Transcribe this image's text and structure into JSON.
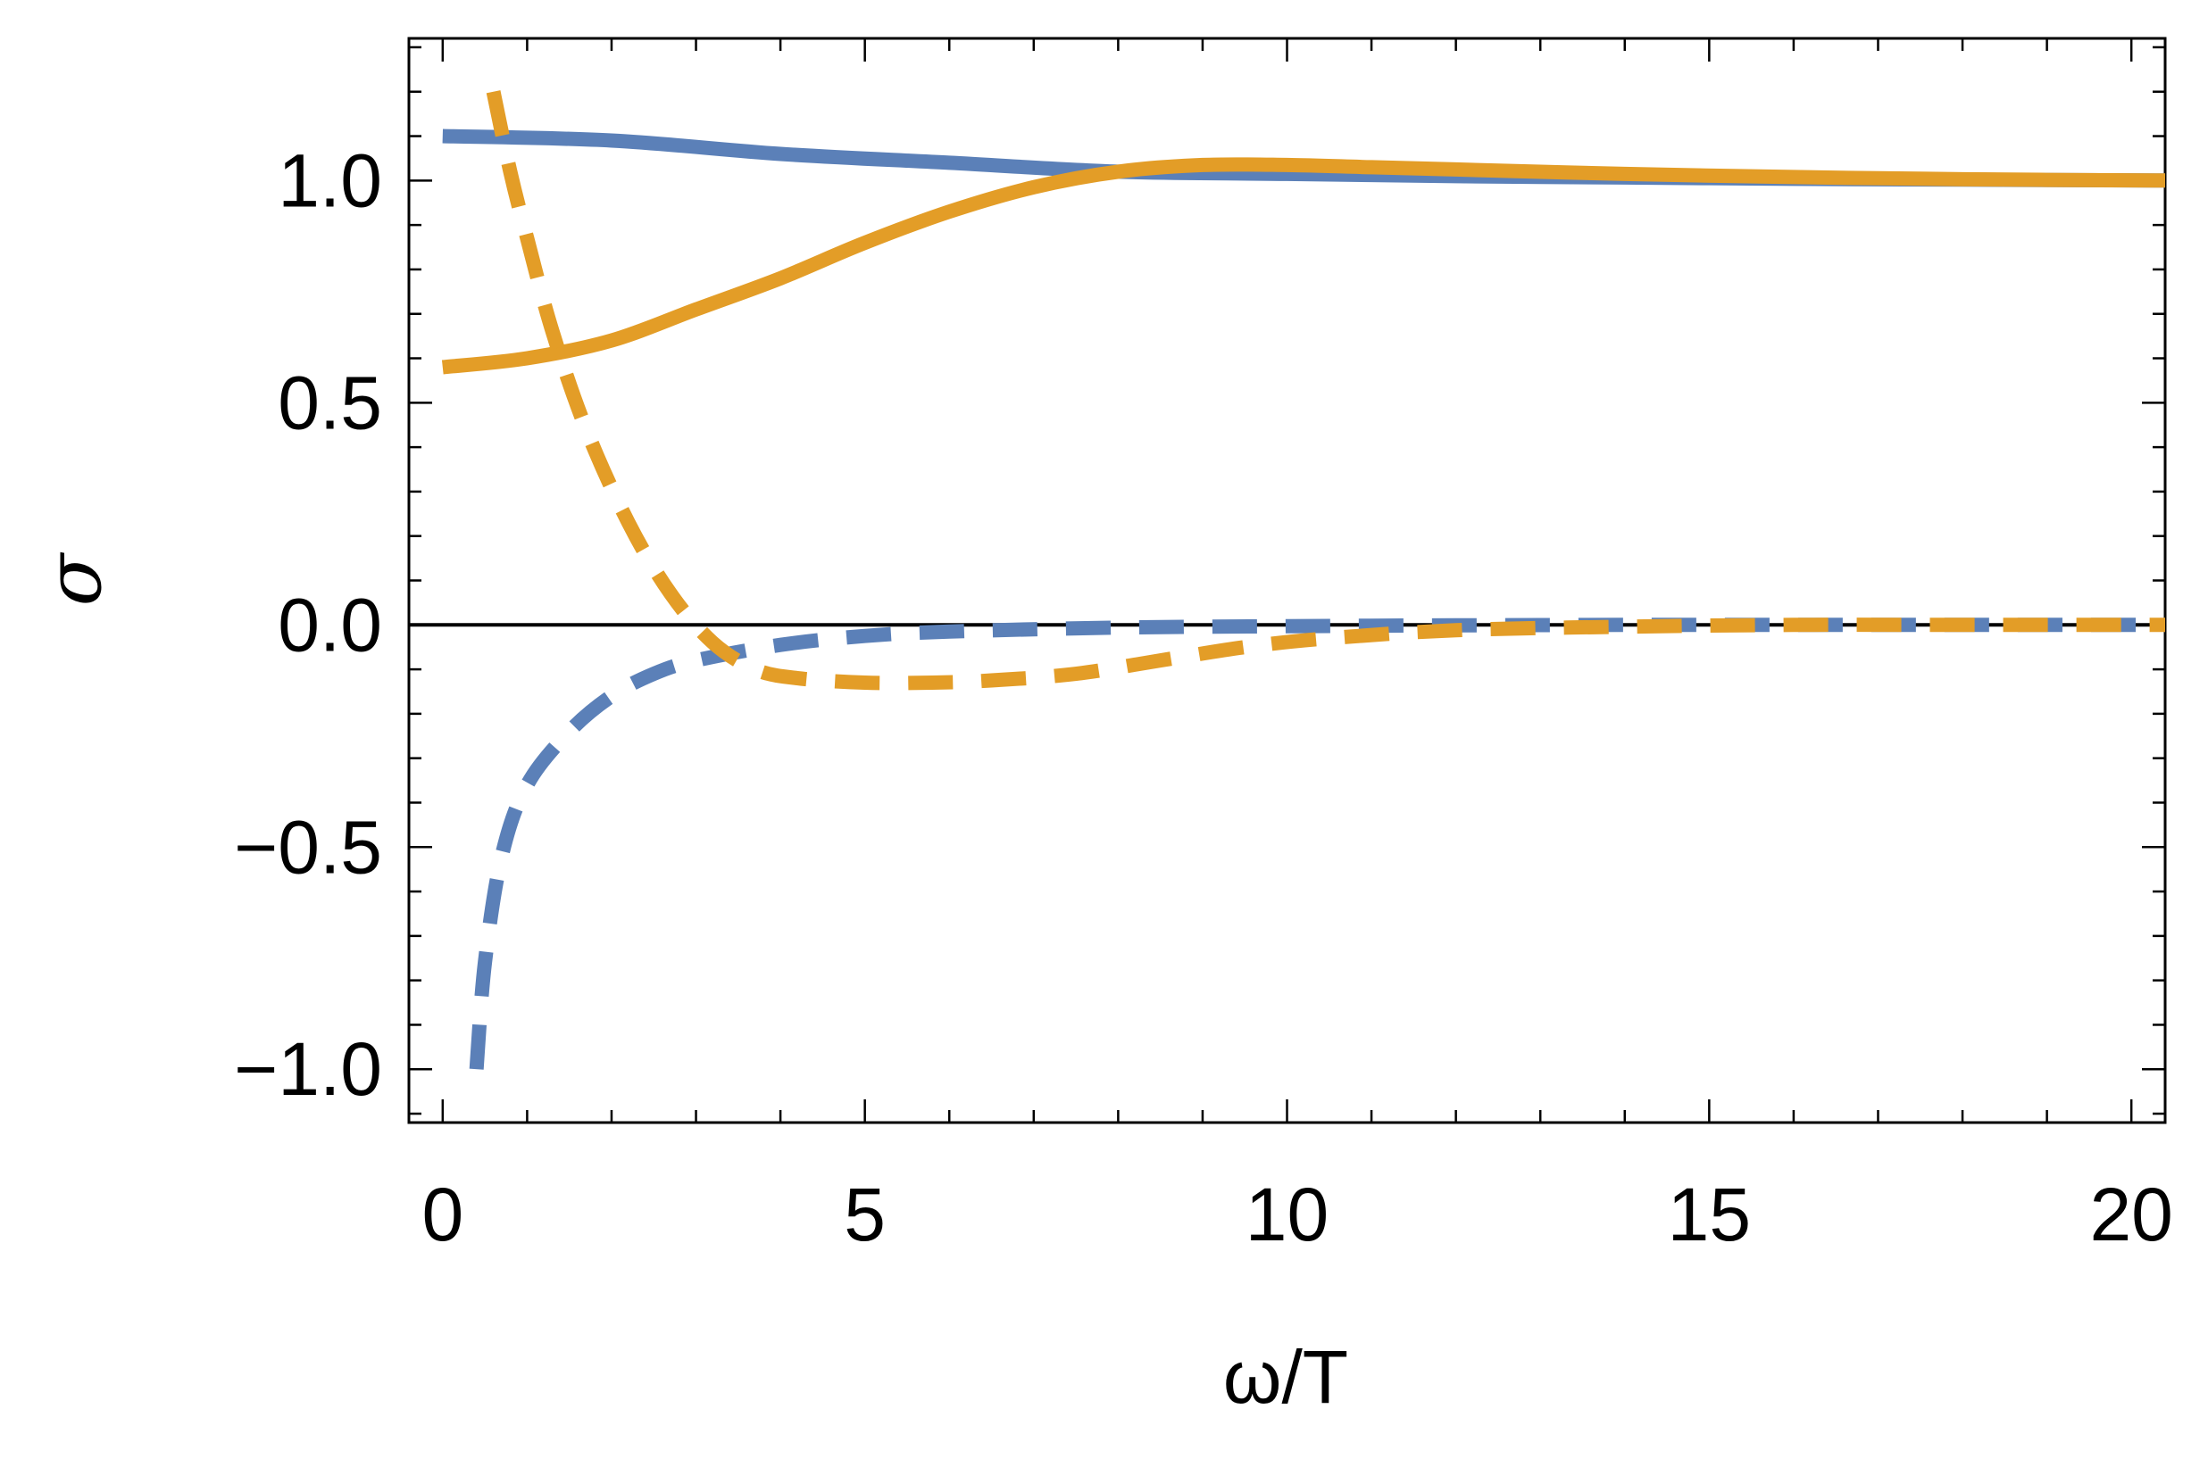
{
  "chart_data": {
    "type": "line",
    "title": "",
    "xlabel": "ω/T",
    "ylabel": "σ",
    "xlim": [
      -0.4,
      20.4
    ],
    "ylim": [
      -1.12,
      1.32
    ],
    "xticks": [
      "0",
      "5",
      "10",
      "15",
      "20"
    ],
    "yticks": [
      "−1.0",
      "−0.5",
      "0.0",
      "0.5",
      "1.0"
    ],
    "colors": {
      "blue": "#5b80b8",
      "orange": "#e39d27",
      "zero_line": "#000000"
    },
    "series": [
      {
        "name": "blue-solid",
        "color": "#5b80b8",
        "style": "solid",
        "x": [
          0,
          2,
          4,
          6,
          8,
          10,
          12,
          14,
          16,
          18,
          20.4
        ],
        "y": [
          1.1,
          1.09,
          1.06,
          1.04,
          1.02,
          1.015,
          1.01,
          1.007,
          1.004,
          1.002,
          1.0
        ]
      },
      {
        "name": "orange-solid",
        "color": "#e39d27",
        "style": "solid",
        "x": [
          0,
          1,
          2,
          3,
          4,
          5,
          6,
          7,
          8,
          9,
          10,
          11,
          12,
          14,
          16,
          18,
          20.4
        ],
        "y": [
          0.58,
          0.6,
          0.64,
          0.71,
          0.78,
          0.86,
          0.93,
          0.985,
          1.02,
          1.035,
          1.035,
          1.03,
          1.025,
          1.015,
          1.008,
          1.003,
          1.0
        ]
      },
      {
        "name": "blue-dashed",
        "color": "#5b80b8",
        "style": "dashed",
        "x": [
          0.4,
          0.5,
          0.7,
          1.0,
          1.5,
          2.0,
          2.5,
          3.0,
          4.0,
          5.0,
          6.0,
          8.0,
          10,
          12,
          14,
          16,
          18,
          20.4
        ],
        "y": [
          -1.0,
          -0.76,
          -0.52,
          -0.36,
          -0.24,
          -0.16,
          -0.11,
          -0.08,
          -0.045,
          -0.025,
          -0.015,
          -0.006,
          -0.003,
          -0.001,
          0.0,
          0.0,
          0.0,
          0.0
        ]
      },
      {
        "name": "orange-dashed",
        "color": "#e39d27",
        "style": "dashed",
        "x": [
          0.6,
          0.8,
          1.0,
          1.3,
          1.7,
          2.2,
          2.7,
          3.2,
          3.7,
          4.2,
          5.0,
          5.8,
          6.5,
          7.5,
          8.5,
          9.5,
          10.5,
          12,
          14,
          16,
          18,
          20.4
        ],
        "y": [
          1.2,
          1.02,
          0.87,
          0.66,
          0.44,
          0.23,
          0.07,
          -0.04,
          -0.1,
          -0.12,
          -0.13,
          -0.13,
          -0.125,
          -0.11,
          -0.08,
          -0.05,
          -0.03,
          -0.012,
          -0.004,
          0.0,
          0.0,
          0.0
        ]
      }
    ]
  }
}
